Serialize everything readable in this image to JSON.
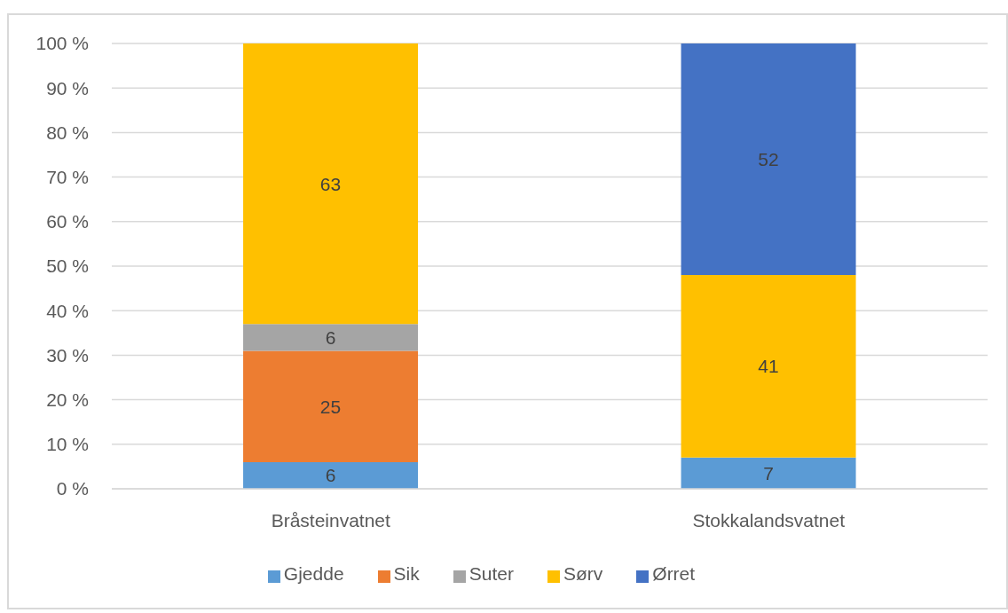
{
  "chart_data": {
    "type": "bar",
    "stacked": true,
    "categories": [
      "Bråsteinvatnet",
      "Stokkalandsvatnet"
    ],
    "series": [
      {
        "name": "Gjedde",
        "color": "#5b9bd5",
        "values": [
          6,
          7
        ]
      },
      {
        "name": "Sik",
        "color": "#ed7d31",
        "values": [
          25,
          null
        ]
      },
      {
        "name": "Suter",
        "color": "#a5a5a5",
        "values": [
          6,
          null
        ]
      },
      {
        "name": "Sørv",
        "color": "#ffc000",
        "values": [
          63,
          41
        ]
      },
      {
        "name": "Ørret",
        "color": "#4472c4",
        "values": [
          null,
          52
        ]
      }
    ],
    "ylim": [
      0,
      100
    ],
    "yticks": [
      {
        "value": 0,
        "label": "0 %"
      },
      {
        "value": 10,
        "label": "10 %"
      },
      {
        "value": 20,
        "label": "20 %"
      },
      {
        "value": 30,
        "label": "30 %"
      },
      {
        "value": 40,
        "label": "40 %"
      },
      {
        "value": 50,
        "label": "50 %"
      },
      {
        "value": 60,
        "label": "60 %"
      },
      {
        "value": 70,
        "label": "70 %"
      },
      {
        "value": 80,
        "label": "80 %"
      },
      {
        "value": 90,
        "label": "90 %"
      },
      {
        "value": 100,
        "label": "100 %"
      }
    ],
    "grid": "y",
    "legend": "bottom",
    "data_labels": true
  }
}
